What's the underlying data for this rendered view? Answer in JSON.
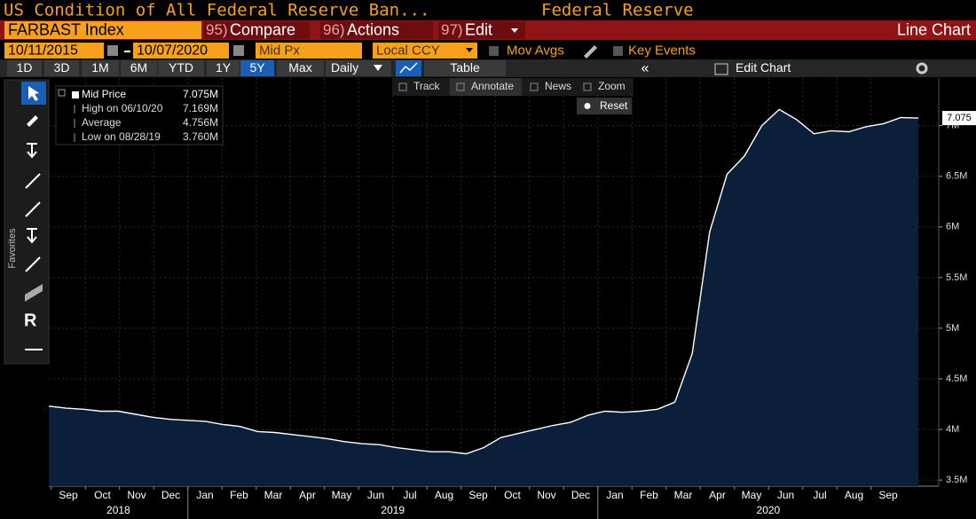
{
  "header": {
    "title": "US Condition of All Federal Reserve Ban...",
    "source": "Federal Reserve"
  },
  "command_bar": {
    "ticker": "FARBAST Index",
    "menus": [
      {
        "key": "95)",
        "label": "Compare"
      },
      {
        "key": "96)",
        "label": "Actions"
      },
      {
        "key": "97)",
        "label": "Edit"
      }
    ],
    "view": "Line Chart"
  },
  "settings": {
    "start_date": "10/11/2015",
    "end_date": "10/07/2020",
    "field": "Mid Px",
    "currency": "Local CCY",
    "options": [
      "Mov Avgs",
      "Key Events"
    ]
  },
  "range_buttons": [
    "1D",
    "3D",
    "1M",
    "6M",
    "YTD",
    "1Y",
    "5Y",
    "Max"
  ],
  "active_range": 6,
  "frequency": "Daily",
  "toolbar": [
    "Table",
    "Edit Chart"
  ],
  "chart_tools": [
    "Track",
    "Annotate",
    "News",
    "Zoom",
    "Reset"
  ],
  "sidebar": {
    "label": "Favorites"
  },
  "chart_data": {
    "type": "line",
    "series": [
      {
        "name": "Mid Price",
        "color": "#ffffff",
        "fill": "#0b1e3a",
        "values": [
          4.23,
          4.21,
          4.2,
          4.18,
          4.18,
          4.15,
          4.12,
          4.1,
          4.09,
          4.08,
          4.05,
          4.03,
          3.98,
          3.97,
          3.95,
          3.93,
          3.91,
          3.88,
          3.86,
          3.85,
          3.82,
          3.8,
          3.78,
          3.78,
          3.76,
          3.82,
          3.92,
          3.96,
          4.0,
          4.04,
          4.07,
          4.14,
          4.18,
          4.17,
          4.18,
          4.2,
          4.27,
          4.75,
          5.95,
          6.52,
          6.7,
          7.0,
          7.16,
          7.06,
          6.92,
          6.95,
          6.94,
          6.99,
          7.02,
          7.08,
          7.075
        ]
      }
    ],
    "legend_value": "7.075M",
    "stats": [
      {
        "label": "High on 06/10/20",
        "value": "7.169M"
      },
      {
        "label": "Average",
        "value": "4.756M"
      },
      {
        "label": "Low on 08/28/19",
        "value": "3.760M"
      }
    ],
    "last_value_label": "7.075",
    "months": [
      "Sep",
      "Oct",
      "Nov",
      "Dec",
      "Jan",
      "Feb",
      "Mar",
      "Apr",
      "May",
      "Jun",
      "Jul",
      "Aug",
      "Sep",
      "Oct",
      "Nov",
      "Dec",
      "Jan",
      "Feb",
      "Mar",
      "Apr",
      "May",
      "Jun",
      "Jul",
      "Aug",
      "Sep"
    ],
    "years": [
      {
        "label": "2018",
        "months": 4
      },
      {
        "label": "2019",
        "months": 12
      },
      {
        "label": "2020",
        "months": 9
      }
    ],
    "ylim": [
      3.44,
      7.47
    ],
    "yticks": [
      {
        "value": 3.5,
        "label": "3.5M"
      },
      {
        "value": 4,
        "label": "4M"
      },
      {
        "value": 4.5,
        "label": "4.5M"
      },
      {
        "value": 5,
        "label": "5M"
      },
      {
        "value": 5.5,
        "label": "5.5M"
      },
      {
        "value": 6,
        "label": "6M"
      },
      {
        "value": 6.5,
        "label": "6.5M"
      },
      {
        "value": 7,
        "label": "7M"
      }
    ],
    "grid": true
  }
}
